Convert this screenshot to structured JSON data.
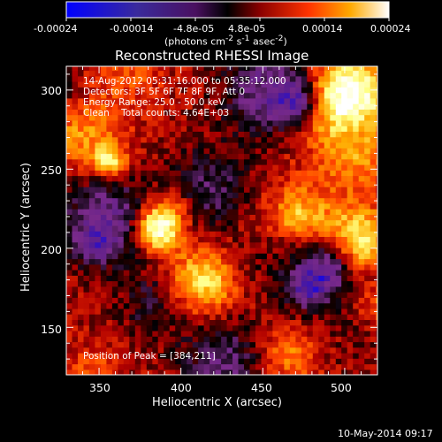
{
  "colorbar": {
    "ticks": [
      "-0.00024",
      "-0.00014",
      "-4.8e-05",
      "4.8e-05",
      "0.00014",
      "0.00024"
    ],
    "unit_html": "(photons cm<sup>-2</sup> s<sup>-1</sup> asec<sup>-2</sup>)",
    "unit": "(photons cm-2 s-1 asec-2)"
  },
  "chart_data": {
    "type": "heatmap",
    "title": "Reconstructed RHESSI Image",
    "xlabel": "Heliocentric X (arcsec)",
    "ylabel": "Heliocentric Y (arcsec)",
    "xlim": [
      330,
      520
    ],
    "ylim": [
      120,
      315
    ],
    "xticks": [
      350,
      400,
      450,
      500
    ],
    "yticks": [
      150,
      200,
      250,
      300
    ],
    "zlim": [
      -0.00024,
      0.00024
    ],
    "colormap": [
      "#0000ff",
      "#5a1e8c",
      "#7a2a8a",
      "#000000",
      "#b00000",
      "#ff4400",
      "#ffaa00",
      "#ffff80",
      "#ffffff"
    ],
    "peak": [
      384,
      211
    ],
    "annotations": [
      "14-Aug-2012 05:31:16.000 to 05:35:12.000",
      "Detectors: 3F 5F 6F 7F 8F 9F, Att 0",
      "Energy Range: 25.0 - 50.0 keV",
      "Clean    Total counts: 4.64E+03"
    ],
    "peak_label": "Position of Peak = [384,211]"
  },
  "footer": {
    "timestamp": "10-May-2014 09:17"
  }
}
